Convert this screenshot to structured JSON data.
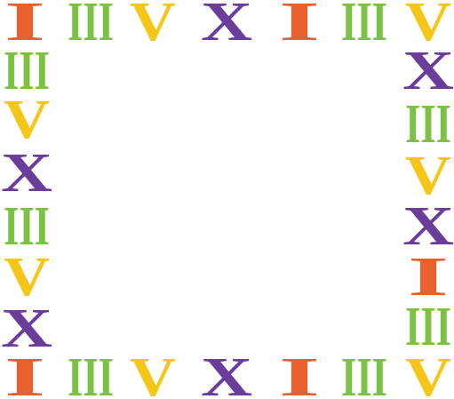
{
  "border": {
    "top": [
      "I",
      "III",
      "V",
      "X",
      "I",
      "III",
      "V"
    ],
    "right": [
      "X",
      "III",
      "V",
      "X",
      "I",
      "III"
    ],
    "bottom": [
      "I",
      "III",
      "V",
      "X",
      "I",
      "III",
      "V"
    ],
    "left": [
      "III",
      "V",
      "X",
      "III",
      "V",
      "X"
    ],
    "colors": {
      "I": "#e8602c",
      "III": "#7cc242",
      "V": "#f5c518",
      "X": "#6a3d9a"
    }
  }
}
